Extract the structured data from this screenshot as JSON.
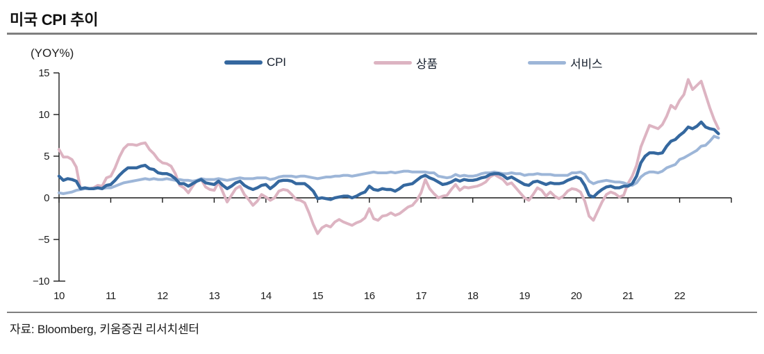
{
  "header": {
    "title": "미국 CPI 추이"
  },
  "footer": {
    "source": "자료: Bloomberg, 키움증권 리서치센터"
  },
  "theme": {
    "divider_color": "#7f7f7f",
    "axis_color": "#1a1a1a",
    "background": "#ffffff"
  },
  "chart_data": {
    "type": "line",
    "title": "미국 CPI 추이",
    "unit_label": "(YOY%)",
    "xlabel": "",
    "ylabel": "YOY %",
    "ylim": [
      -10,
      15
    ],
    "grid": false,
    "legend_position": "top",
    "x_frequency": "monthly",
    "x_start": "2010-01",
    "x_end": "2022-10",
    "x_tick_labels": [
      "10",
      "11",
      "12",
      "13",
      "14",
      "15",
      "16",
      "17",
      "18",
      "19",
      "20",
      "21",
      "22"
    ],
    "y_tick_values": [
      15,
      10,
      5,
      0,
      -5,
      -10
    ],
    "y_tick_labels": [
      "15",
      "10",
      "5",
      "0",
      "−5",
      "−10"
    ],
    "draw_order": [
      1,
      2,
      0
    ],
    "series": [
      {
        "name": "CPI",
        "color": "#35689f",
        "width": 4.4,
        "values": [
          2.6,
          2.1,
          2.3,
          2.2,
          2.0,
          1.1,
          1.2,
          1.1,
          1.1,
          1.2,
          1.1,
          1.5,
          1.6,
          2.1,
          2.7,
          3.2,
          3.6,
          3.6,
          3.6,
          3.8,
          3.9,
          3.5,
          3.4,
          3.0,
          2.9,
          2.9,
          2.7,
          2.3,
          1.7,
          1.7,
          1.4,
          1.7,
          2.0,
          2.2,
          1.8,
          1.7,
          1.6,
          2.0,
          1.5,
          1.1,
          1.4,
          1.8,
          2.0,
          1.5,
          1.2,
          1.0,
          1.2,
          1.5,
          1.6,
          1.1,
          1.5,
          2.0,
          2.1,
          2.1,
          2.0,
          1.7,
          1.7,
          1.7,
          1.3,
          0.8,
          -0.1,
          0.0,
          -0.1,
          -0.2,
          0.0,
          0.1,
          0.2,
          0.2,
          0.0,
          0.2,
          0.5,
          0.7,
          1.4,
          1.0,
          0.9,
          1.1,
          1.0,
          1.0,
          0.8,
          1.1,
          1.5,
          1.6,
          1.7,
          2.1,
          2.5,
          2.7,
          2.4,
          2.2,
          1.9,
          1.6,
          1.7,
          1.9,
          2.2,
          2.0,
          2.2,
          2.1,
          2.1,
          2.2,
          2.4,
          2.5,
          2.8,
          2.9,
          2.9,
          2.7,
          2.3,
          2.5,
          2.2,
          1.9,
          1.6,
          1.5,
          1.9,
          2.0,
          1.8,
          1.6,
          1.8,
          1.7,
          1.7,
          1.8,
          2.1,
          2.3,
          2.5,
          2.3,
          1.5,
          0.3,
          0.1,
          0.6,
          1.0,
          1.3,
          1.4,
          1.2,
          1.2,
          1.4,
          1.4,
          1.7,
          2.6,
          4.2,
          5.0,
          5.4,
          5.4,
          5.3,
          5.4,
          6.2,
          6.8,
          7.0,
          7.5,
          7.9,
          8.5,
          8.3,
          8.6,
          9.1,
          8.5,
          8.3,
          8.2,
          7.7
        ]
      },
      {
        "name": "상품",
        "color": "#ddb4c2",
        "width": 4.0,
        "values": [
          5.8,
          4.9,
          4.9,
          4.6,
          3.7,
          1.0,
          1.2,
          1.1,
          1.2,
          1.5,
          1.4,
          2.4,
          2.6,
          3.6,
          4.9,
          5.9,
          6.4,
          6.4,
          6.3,
          6.5,
          6.6,
          5.8,
          5.3,
          4.6,
          4.2,
          4.1,
          3.8,
          2.9,
          1.5,
          1.2,
          0.6,
          1.4,
          2.1,
          2.2,
          1.3,
          1.0,
          0.9,
          1.9,
          0.7,
          -0.5,
          0.3,
          1.1,
          1.4,
          0.4,
          -0.2,
          -0.9,
          -0.4,
          0.4,
          0.1,
          -0.3,
          0.0,
          0.8,
          1.0,
          0.9,
          0.4,
          -0.2,
          -0.3,
          -0.6,
          -1.8,
          -3.2,
          -4.3,
          -3.6,
          -3.3,
          -3.5,
          -2.9,
          -2.6,
          -2.9,
          -3.1,
          -3.3,
          -3.0,
          -2.8,
          -2.4,
          -1.3,
          -2.5,
          -2.7,
          -2.2,
          -2.1,
          -1.8,
          -2.1,
          -1.9,
          -1.5,
          -1.1,
          -0.9,
          -0.3,
          0.6,
          2.2,
          1.1,
          0.5,
          0.0,
          0.2,
          0.3,
          1.0,
          1.6,
          0.9,
          1.3,
          1.2,
          1.3,
          1.4,
          1.6,
          1.9,
          2.5,
          2.8,
          2.5,
          2.2,
          1.6,
          1.8,
          1.2,
          0.6,
          0.0,
          -0.3,
          0.4,
          1.2,
          0.9,
          0.2,
          0.7,
          0.2,
          -0.1,
          0.2,
          0.8,
          1.1,
          1.0,
          0.7,
          -0.4,
          -2.2,
          -2.7,
          -1.6,
          -0.5,
          0.4,
          0.7,
          0.5,
          0.1,
          0.3,
          1.7,
          2.6,
          3.9,
          6.1,
          7.4,
          8.7,
          8.5,
          8.3,
          8.8,
          9.8,
          11.1,
          10.7,
          11.7,
          12.4,
          14.2,
          13.0,
          13.5,
          14.0,
          12.4,
          10.8,
          9.4,
          8.3
        ]
      },
      {
        "name": "서비스",
        "color": "#9db6d8",
        "width": 4.0,
        "values": [
          0.6,
          0.5,
          0.6,
          0.7,
          0.9,
          1.0,
          1.1,
          1.1,
          1.1,
          1.2,
          1.1,
          1.2,
          1.2,
          1.4,
          1.6,
          1.8,
          1.9,
          2.0,
          2.1,
          2.2,
          2.3,
          2.2,
          2.3,
          2.2,
          2.2,
          2.3,
          2.2,
          2.1,
          2.2,
          2.1,
          2.1,
          2.0,
          2.1,
          2.3,
          2.2,
          2.2,
          2.2,
          2.3,
          2.2,
          2.1,
          2.2,
          2.3,
          2.4,
          2.3,
          2.3,
          2.3,
          2.4,
          2.4,
          2.4,
          2.2,
          2.3,
          2.5,
          2.6,
          2.6,
          2.6,
          2.5,
          2.6,
          2.6,
          2.5,
          2.4,
          2.3,
          2.4,
          2.5,
          2.5,
          2.6,
          2.6,
          2.7,
          2.7,
          2.6,
          2.7,
          2.8,
          2.9,
          3.0,
          3.1,
          3.0,
          3.0,
          3.0,
          3.1,
          3.0,
          3.1,
          3.2,
          3.2,
          3.1,
          3.1,
          3.1,
          3.1,
          3.0,
          3.0,
          2.6,
          2.5,
          2.4,
          2.5,
          2.8,
          2.6,
          2.7,
          2.6,
          2.6,
          2.7,
          2.9,
          3.0,
          3.0,
          3.1,
          3.0,
          2.9,
          2.9,
          3.0,
          2.9,
          2.9,
          2.7,
          2.8,
          2.8,
          2.9,
          2.8,
          2.8,
          2.8,
          2.7,
          2.7,
          2.7,
          2.7,
          3.0,
          3.0,
          3.1,
          2.8,
          2.0,
          1.7,
          1.9,
          2.0,
          2.1,
          2.0,
          1.9,
          1.9,
          1.8,
          1.6,
          1.5,
          1.8,
          2.5,
          2.9,
          3.1,
          3.1,
          3.0,
          3.2,
          3.6,
          3.8,
          4.0,
          4.6,
          4.8,
          5.1,
          5.4,
          5.7,
          6.2,
          6.3,
          6.8,
          7.4,
          7.2
        ]
      }
    ]
  }
}
